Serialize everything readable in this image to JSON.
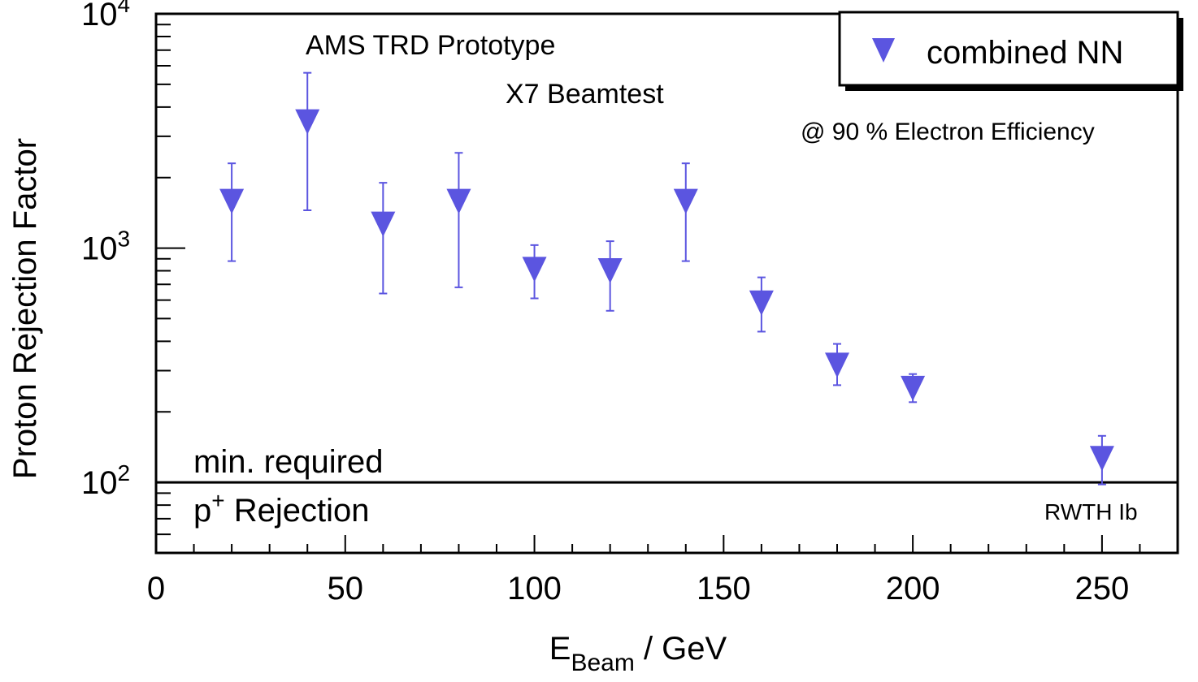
{
  "chart_data": {
    "type": "scatter",
    "xlabel_main": "E",
    "xlabel_sub": "Beam",
    "xlabel_rest": " / GeV",
    "ylabel": "Proton Rejection Factor",
    "xlim": [
      0,
      270
    ],
    "ylim": [
      50,
      10000
    ],
    "yscale": "log",
    "x_ticks": [
      "0",
      "50",
      "100",
      "150",
      "200",
      "250"
    ],
    "y_ticks": [
      {
        "base": "10",
        "exp": "2"
      },
      {
        "base": "10",
        "exp": "3"
      },
      {
        "base": "10",
        "exp": "4"
      }
    ],
    "legend": {
      "label": "combined NN",
      "position": "top-right"
    },
    "annotations": {
      "title_line1": "AMS TRD Prototype",
      "title_line2": "X7 Beamtest",
      "efficiency": "@ 90 % Electron Efficiency",
      "threshold_top": "min. required",
      "threshold_bottom_main": "p",
      "threshold_bottom_sup": "+",
      "threshold_bottom_rest": " Rejection",
      "credit": "RWTH Ib"
    },
    "threshold": 100,
    "series": [
      {
        "marker": "triangle-down",
        "color": "#5b55e0",
        "points": [
          {
            "x": 20,
            "y": 1600,
            "ylo": 880,
            "yhi": 2300
          },
          {
            "x": 40,
            "y": 3500,
            "ylo": 1450,
            "yhi": 5600
          },
          {
            "x": 60,
            "y": 1280,
            "ylo": 640,
            "yhi": 1900
          },
          {
            "x": 80,
            "y": 1600,
            "ylo": 680,
            "yhi": 2550
          },
          {
            "x": 100,
            "y": 820,
            "ylo": 610,
            "yhi": 1030
          },
          {
            "x": 120,
            "y": 810,
            "ylo": 540,
            "yhi": 1070
          },
          {
            "x": 140,
            "y": 1600,
            "ylo": 880,
            "yhi": 2300
          },
          {
            "x": 160,
            "y": 590,
            "ylo": 440,
            "yhi": 750
          },
          {
            "x": 180,
            "y": 320,
            "ylo": 260,
            "yhi": 390
          },
          {
            "x": 200,
            "y": 255,
            "ylo": 220,
            "yhi": 290
          },
          {
            "x": 250,
            "y": 128,
            "ylo": 98,
            "yhi": 158
          }
        ]
      }
    ]
  }
}
